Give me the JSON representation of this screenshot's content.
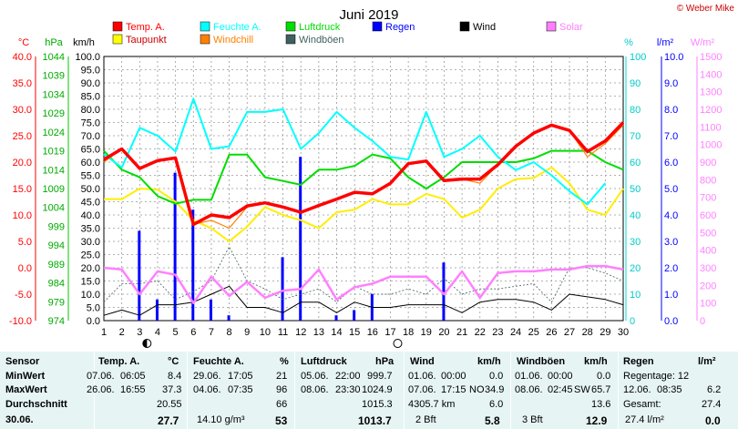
{
  "title": "Juni 2019",
  "copyright": "© Weber Mike",
  "legend": [
    {
      "label": "Temp. A.",
      "color": "#ff0000"
    },
    {
      "label": "Feuchte A.",
      "color": "#00ffff"
    },
    {
      "label": "Luftdruck",
      "color": "#00dd00"
    },
    {
      "label": "Regen",
      "color": "#0000ff"
    },
    {
      "label": "Wind",
      "color": "#000000"
    },
    {
      "label": "Solar",
      "color": "#ff80ff"
    },
    {
      "label": "Taupunkt",
      "color": "#ffff00"
    },
    {
      "label": "Windchill",
      "color": "#ff8000"
    },
    {
      "label": "Windböen",
      "color": "#406060"
    }
  ],
  "axes": {
    "units": {
      "temp": "°C",
      "press": "hPa",
      "wind": "km/h",
      "hum": "%",
      "rain": "l/m²",
      "solar": "W/m²"
    },
    "temp_ticks": [
      "40.0",
      "35.0",
      "30.0",
      "25.0",
      "20.0",
      "15.0",
      "10.0",
      "5.0",
      "0.0",
      "-5.0",
      "-10.0"
    ],
    "press_ticks": [
      "1044",
      "1039",
      "1034",
      "1029",
      "1024",
      "1019",
      "1014",
      "1009",
      "1004",
      "999",
      "994",
      "989",
      "984",
      "979",
      "974"
    ],
    "wind_ticks": [
      "100.0",
      "95.0",
      "90.0",
      "85.0",
      "80.0",
      "75.0",
      "70.0",
      "65.0",
      "60.0",
      "55.0",
      "50.0",
      "45.0",
      "40.0",
      "35.0",
      "30.0",
      "25.0",
      "20.0",
      "15.0",
      "10.0",
      "5.0",
      "0.0"
    ],
    "hum_ticks": [
      "100",
      "90",
      "80",
      "70",
      "60",
      "50",
      "40",
      "30",
      "20",
      "10",
      "0"
    ],
    "rain_ticks": [
      "10.0",
      "9.0",
      "8.0",
      "7.0",
      "6.0",
      "5.0",
      "4.0",
      "3.0",
      "2.0",
      "1.0",
      "0.0"
    ],
    "solar_ticks": [
      "1500",
      "1400",
      "1300",
      "1200",
      "1100",
      "1000",
      "900",
      "800",
      "700",
      "600",
      "500",
      "400",
      "300",
      "200",
      "100",
      "0"
    ],
    "days": [
      "1",
      "2",
      "3",
      "4",
      "5",
      "6",
      "7",
      "8",
      "9",
      "10",
      "11",
      "12",
      "13",
      "14",
      "15",
      "16",
      "17",
      "18",
      "19",
      "20",
      "21",
      "22",
      "23",
      "24",
      "25",
      "26",
      "27",
      "28",
      "29",
      "30"
    ]
  },
  "chart_data": {
    "type": "line",
    "title": "Juni 2019",
    "x": [
      1,
      2,
      3,
      4,
      5,
      6,
      7,
      8,
      9,
      10,
      11,
      12,
      13,
      14,
      15,
      16,
      17,
      18,
      19,
      20,
      21,
      22,
      23,
      24,
      25,
      26,
      27,
      28,
      29,
      30
    ],
    "xlim": [
      1,
      30
    ],
    "temp_ylim": [
      -10,
      40
    ],
    "series": [
      {
        "name": "Temp. A.",
        "unit": "°C",
        "values": [
          20.5,
          22.5,
          18.8,
          20.3,
          20.8,
          8.2,
          10.0,
          9.5,
          11.7,
          12.3,
          11.5,
          10.5,
          11.8,
          13.0,
          14.3,
          14.0,
          16.0,
          19.7,
          20.2,
          16.5,
          16.8,
          16.8,
          19.5,
          23.0,
          25.5,
          27.0,
          26.0,
          22.0,
          24.0,
          27.5
        ]
      },
      {
        "name": "Feuchte A.",
        "unit": "%",
        "values": [
          63,
          58,
          73,
          70,
          64,
          84,
          65,
          66,
          79,
          79,
          80,
          65,
          71,
          79,
          73,
          68,
          62,
          61,
          79,
          62,
          65,
          70,
          62,
          57,
          60,
          55,
          49,
          44,
          52,
          null
        ]
      },
      {
        "name": "Luftdruck",
        "unit": "hPa",
        "values": [
          1019,
          1014,
          1012,
          1007,
          1005,
          1006,
          1006,
          1018,
          1018,
          1012,
          1011,
          1010,
          1014,
          1014,
          1015,
          1018,
          1017,
          1012,
          1009,
          1012,
          1016,
          1016,
          1016,
          1016,
          1017,
          1019,
          1019,
          1019,
          1016,
          1014
        ]
      },
      {
        "name": "Taupunkt",
        "unit": "°C",
        "values": [
          13.0,
          13.0,
          15.0,
          14.8,
          12.5,
          9.0,
          7.5,
          5.0,
          7.8,
          11.5,
          10.0,
          9.0,
          7.5,
          10.5,
          11.0,
          13.0,
          12.0,
          12.0,
          14.0,
          13.0,
          9.5,
          11.0,
          15.0,
          16.8,
          17.0,
          19.0,
          16.0,
          11.0,
          10.0,
          15.0
        ]
      },
      {
        "name": "Windchill",
        "unit": "°C",
        "values": [
          20.0,
          22.5,
          18.8,
          20.3,
          20.8,
          8.2,
          9.0,
          7.5,
          11.5,
          12.3,
          11.5,
          10.5,
          11.8,
          13.0,
          14.3,
          14.0,
          16.0,
          19.7,
          20.2,
          16.5,
          16.8,
          16.0,
          19.5,
          23.0,
          25.5,
          27.0,
          26.0,
          21.0,
          23.5,
          27.0
        ]
      },
      {
        "name": "Wind",
        "unit": "km/h",
        "values": [
          2,
          4,
          2,
          6,
          6,
          7,
          10,
          13,
          5,
          5,
          3,
          7,
          7,
          3,
          7,
          5,
          5,
          6,
          6,
          6,
          3,
          7,
          8,
          8,
          7,
          4,
          10,
          9,
          8,
          6
        ]
      },
      {
        "name": "Windböen",
        "unit": "km/h",
        "values": [
          7,
          14,
          14,
          15,
          8,
          11,
          15,
          28,
          15,
          12,
          8,
          10,
          12,
          7,
          13,
          10,
          10,
          12,
          10,
          16,
          10,
          12,
          12,
          13,
          14,
          7,
          20,
          20,
          18,
          15
        ]
      },
      {
        "name": "Solar",
        "unit": "W/m²",
        "values": [
          300,
          290,
          150,
          280,
          260,
          100,
          250,
          140,
          220,
          130,
          170,
          180,
          290,
          120,
          190,
          210,
          250,
          250,
          250,
          150,
          280,
          130,
          270,
          280,
          280,
          290,
          290,
          310,
          310,
          290
        ]
      },
      {
        "name": "Regen",
        "unit": "l/m²",
        "values": [
          0,
          0,
          3.4,
          0.8,
          5.6,
          4.2,
          0.8,
          0.2,
          0,
          0,
          2.4,
          6.2,
          0,
          0.2,
          0.4,
          1.0,
          0,
          0,
          0,
          2.2,
          0,
          0,
          0,
          0,
          0,
          0,
          0,
          0,
          0,
          0
        ]
      }
    ]
  },
  "moon": [
    {
      "day": 3,
      "phase": "half"
    },
    {
      "day": 17,
      "phase": "full"
    }
  ],
  "table": {
    "sensor": {
      "header": "Sensor",
      "rows": [
        "MinWert",
        "MaxWert",
        "Durchschnitt",
        "30.06."
      ]
    },
    "temp": {
      "header": "Temp. A.",
      "unit": "°C",
      "min_date": "07.06.",
      "min_time": "06:05",
      "min": "8.4",
      "max_date": "26.06.",
      "max_time": "16:55",
      "max": "37.3",
      "avg": "20.55",
      "today": "27.7"
    },
    "hum": {
      "header": "Feuchte A.",
      "unit": "%",
      "min_date": "29.06.",
      "min_time": "17:05",
      "min": "21",
      "max_date": "04.06.",
      "max_time": "07:35",
      "max": "96",
      "avg": "66",
      "abs": "14.10 g/m³",
      "today": "53"
    },
    "press": {
      "header": "Luftdruck",
      "unit": "hPa",
      "min_date": "05.06.",
      "min_time": "22:00",
      "min": "999.7",
      "max_date": "08.06.",
      "max_time": "23:30",
      "max": "1024.9",
      "avg": "1015.3",
      "today": "1013.7"
    },
    "wind": {
      "header": "Wind",
      "unit": "km/h",
      "min_date": "01.06.",
      "min_time": "00:00",
      "min": "0.0",
      "max_date": "07.06.",
      "max_time": "17:15",
      "max_dir": "NO",
      "max": "34.9",
      "distance": "4305.7 km",
      "avg": "6.0",
      "bft": "2 Bft",
      "today": "5.8"
    },
    "gust": {
      "header": "Windböen",
      "unit": "km/h",
      "min_date": "01.06.",
      "min_time": "00:00",
      "min": "0.0",
      "max_date": "08.06.",
      "max_time": "02:45",
      "max_dir": "SW",
      "max": "65.7",
      "avg": "13.6",
      "bft": "3 Bft",
      "today": "12.9"
    },
    "rain": {
      "header": "Regen",
      "unit": "l/m²",
      "days_label": "Regentage: 12",
      "max_date": "12.06.",
      "max_time": "08:35",
      "max": "6.2",
      "total_label": "Gesamt:",
      "total": "27.4",
      "today": "27.4 l/m²",
      "today_val": "0.0"
    }
  }
}
